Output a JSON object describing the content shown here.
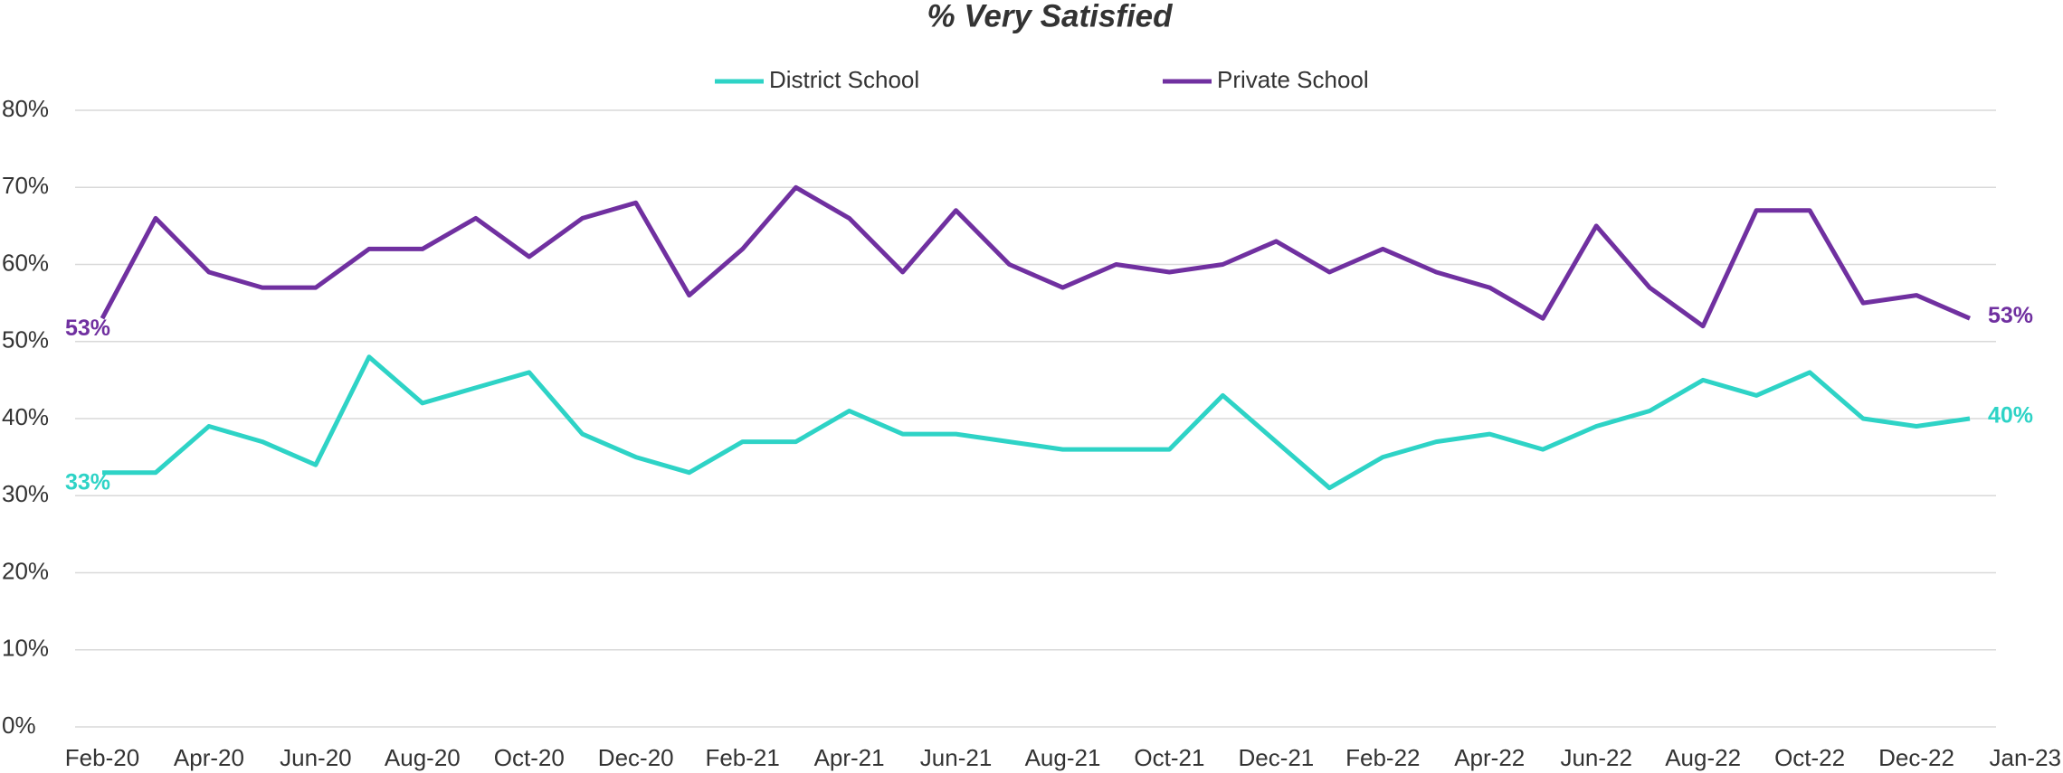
{
  "chart_data": {
    "type": "line",
    "title": "% Very Satisfied",
    "categories": [
      "Feb-20",
      null,
      "Apr-20",
      null,
      "Jun-20",
      null,
      "Aug-20",
      null,
      "Oct-20",
      null,
      "Dec-20",
      null,
      "Feb-21",
      null,
      "Apr-21",
      null,
      "Jun-21",
      null,
      "Aug-21",
      null,
      "Oct-21",
      null,
      "Dec-21",
      null,
      "Feb-22",
      null,
      "Apr-22",
      null,
      "Jun-22",
      null,
      "Aug-22",
      null,
      "Oct-22",
      null,
      "Dec-22",
      "Jan-23"
    ],
    "series": [
      {
        "name": "District School",
        "color": "#2ed3c6",
        "values": [
          33,
          33,
          39,
          37,
          34,
          48,
          42,
          44,
          46,
          38,
          35,
          33,
          37,
          37,
          41,
          38,
          38,
          37,
          36,
          36,
          36,
          43,
          37,
          31,
          35,
          37,
          38,
          36,
          39,
          41,
          45,
          43,
          46,
          40,
          39,
          40
        ],
        "value_labels": [
          "33%",
          null,
          null,
          null,
          null,
          null,
          null,
          null,
          null,
          null,
          null,
          null,
          null,
          null,
          null,
          null,
          null,
          null,
          null,
          null,
          null,
          null,
          null,
          null,
          null,
          null,
          null,
          null,
          null,
          null,
          null,
          null,
          null,
          null,
          null,
          "40%"
        ]
      },
      {
        "name": "Private School",
        "color": "#7030a0",
        "values": [
          53,
          66,
          59,
          57,
          57,
          62,
          62,
          66,
          61,
          66,
          68,
          56,
          62,
          70,
          66,
          59,
          67,
          60,
          57,
          60,
          59,
          60,
          63,
          59,
          62,
          59,
          57,
          53,
          65,
          57,
          52,
          67,
          67,
          55,
          56,
          53
        ],
        "value_labels": [
          "53%",
          null,
          null,
          null,
          null,
          null,
          null,
          null,
          null,
          null,
          null,
          null,
          null,
          null,
          null,
          null,
          null,
          null,
          null,
          null,
          null,
          null,
          null,
          null,
          null,
          null,
          null,
          null,
          null,
          null,
          null,
          null,
          null,
          null,
          null,
          "53%"
        ]
      }
    ],
    "ylim": [
      0,
      80
    ],
    "yticks": [
      {
        "value": 0,
        "label": "0%"
      },
      {
        "value": 10,
        "label": "10%"
      },
      {
        "value": 20,
        "label": "20%"
      },
      {
        "value": 30,
        "label": "30%"
      },
      {
        "value": 40,
        "label": "40%"
      },
      {
        "value": 50,
        "label": "50%"
      },
      {
        "value": 60,
        "label": "60%"
      },
      {
        "value": 70,
        "label": "70%"
      },
      {
        "value": 80,
        "label": "80%"
      }
    ],
    "grid": true,
    "legend": "top"
  }
}
